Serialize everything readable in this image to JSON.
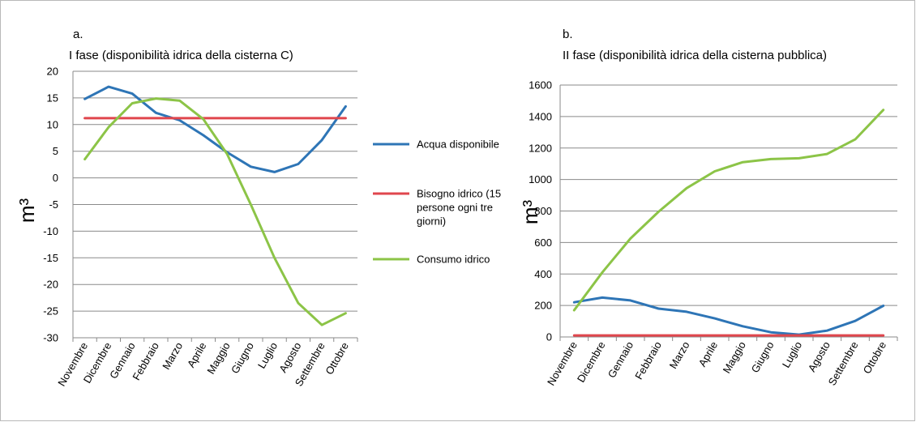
{
  "chart_data": [
    {
      "type": "line",
      "panel_label": "a.",
      "title": "I fase (disponibilità idrica della cisterna C)",
      "ylabel": "m³",
      "xlabel": "",
      "ylim": [
        -30,
        20
      ],
      "yticks": [
        20,
        15,
        10,
        5,
        0,
        -5,
        -10,
        -15,
        -20,
        -25,
        -30
      ],
      "grid": true,
      "legend_position": "right",
      "categories": [
        "Novembre",
        "Dicembre",
        "Gennaio",
        "Febbraio",
        "Marzo",
        "Aprile",
        "Maggio",
        "Giugno",
        "Luglio",
        "Agosto",
        "Settembre",
        "Ottobre"
      ],
      "series": [
        {
          "name": "Acqua disponibile",
          "color": "#2e75b6",
          "values": [
            14.8,
            17.1,
            15.8,
            12.2,
            10.8,
            8.0,
            4.8,
            2.1,
            1.1,
            2.6,
            7.1,
            13.4
          ]
        },
        {
          "name": "Bisogno idrico (15 persone ogni tre giorni)",
          "color": "#e0464d",
          "values": [
            11.2,
            11.2,
            11.2,
            11.2,
            11.2,
            11.2,
            11.2,
            11.2,
            11.2,
            11.2,
            11.2,
            11.2
          ]
        },
        {
          "name": "Consumo idrico",
          "color": "#8cc447",
          "values": [
            3.5,
            9.5,
            14.0,
            14.9,
            14.5,
            11.0,
            4.5,
            -5.0,
            -15.0,
            -23.5,
            -27.6,
            -25.4
          ]
        }
      ],
      "legend_lines": [
        [
          "Acqua disponibile"
        ],
        [
          "Bisogno idrico (15",
          "persone ogni tre",
          "giorni)"
        ],
        [
          "Consumo idrico"
        ]
      ]
    },
    {
      "type": "line",
      "panel_label": "b.",
      "title": "II fase (disponibilità idrica della cisterna pubblica)",
      "ylabel": "m³",
      "xlabel": "",
      "ylim": [
        0,
        1600
      ],
      "yticks": [
        1600,
        1400,
        1200,
        1000,
        800,
        600,
        400,
        200,
        0
      ],
      "grid": true,
      "legend_position": "none",
      "categories": [
        "Novembre",
        "Dicembre",
        "Gennaio",
        "Febbraio",
        "Marzo",
        "Aprile",
        "Maggio",
        "Giugno",
        "Luglio",
        "Agosto",
        "Settembre",
        "Ottobre"
      ],
      "series": [
        {
          "color": "#2e75b6",
          "values": [
            220,
            250,
            232,
            180,
            160,
            118,
            68,
            30,
            15,
            40,
            102,
            198
          ]
        },
        {
          "color": "#e0464d",
          "values": [
            10,
            10,
            10,
            10,
            10,
            10,
            10,
            10,
            10,
            10,
            10,
            10
          ]
        },
        {
          "color": "#8cc447",
          "values": [
            170,
            410,
            625,
            795,
            945,
            1052,
            1110,
            1130,
            1135,
            1162,
            1255,
            1442
          ]
        }
      ]
    }
  ]
}
